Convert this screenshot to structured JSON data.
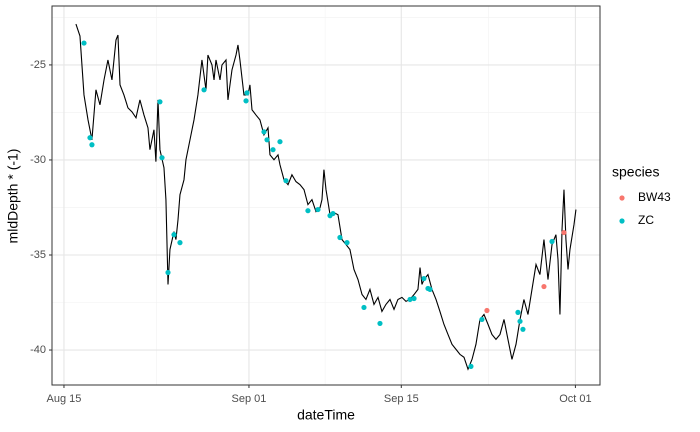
{
  "chart_data": {
    "type": "scatter",
    "x_label": "dateTime",
    "y_label": "mldDepth * (-1)",
    "legend_title": "species",
    "xlim": [
      225.9,
      276.26
    ],
    "ylim": [
      -41.84,
      -21.9
    ],
    "xticks": [
      {
        "value": 227,
        "label": "Aug 15"
      },
      {
        "value": 244,
        "label": "Sep 01"
      },
      {
        "value": 258,
        "label": "Sep 15"
      },
      {
        "value": 274,
        "label": "Oct 01"
      }
    ],
    "yticks": [
      -25,
      -30,
      -35,
      -40
    ],
    "grid": true,
    "legend": "right",
    "line": {
      "color": "#000000",
      "x": [
        228.1,
        228.47,
        228.84,
        229.21,
        229.57,
        229.94,
        230.31,
        230.68,
        231.04,
        231.41,
        231.78,
        231.96,
        232.15,
        232.51,
        232.88,
        233.25,
        233.62,
        233.98,
        234.35,
        234.72,
        234.9,
        235.27,
        235.45,
        235.64,
        235.82,
        236.19,
        236.37,
        236.56,
        236.74,
        237.11,
        237.29,
        237.48,
        237.66,
        238.03,
        238.21,
        238.58,
        238.95,
        239.31,
        239.68,
        240.05,
        240.23,
        240.6,
        240.79,
        240.97,
        241.34,
        241.52,
        241.89,
        242.07,
        242.44,
        242.81,
        242.99,
        243.17,
        243.54,
        243.91,
        244.09,
        244.28,
        244.64,
        245.01,
        245.38,
        245.75,
        245.93,
        246.3,
        246.67,
        246.85,
        247.22,
        247.59,
        247.95,
        248.32,
        248.69,
        249.06,
        249.42,
        249.79,
        250.16,
        250.53,
        250.71,
        250.89,
        251.08,
        251.45,
        251.81,
        252.18,
        252.55,
        252.92,
        253.28,
        253.65,
        254.02,
        254.39,
        254.75,
        255.12,
        255.49,
        255.86,
        256.22,
        256.59,
        256.96,
        257.33,
        257.69,
        258.06,
        258.43,
        258.8,
        259.17,
        259.53,
        259.72,
        259.9,
        260.08,
        260.45,
        260.82,
        261.19,
        261.55,
        261.92,
        262.29,
        262.66,
        263.02,
        263.39,
        263.76,
        264.13,
        264.5,
        264.86,
        265.23,
        265.6,
        265.97,
        266.33,
        266.7,
        267.07,
        267.44,
        267.8,
        268.17,
        268.54,
        268.91,
        269.27,
        269.64,
        270.01,
        270.38,
        270.74,
        271.11,
        271.48,
        271.85,
        272.21,
        272.4,
        272.58,
        272.77,
        272.95,
        273.13,
        273.32,
        273.5,
        273.87,
        274.05
      ],
      "values": [
        -22.85,
        -23.48,
        -26.58,
        -27.89,
        -28.94,
        -26.31,
        -27.1,
        -25.79,
        -24.74,
        -25.79,
        -23.69,
        -23.43,
        -26.05,
        -26.58,
        -27.26,
        -27.47,
        -27.78,
        -26.84,
        -27.63,
        -28.31,
        -29.46,
        -28.41,
        -30.09,
        -26.84,
        -29.46,
        -30.41,
        -32.09,
        -36.55,
        -34.71,
        -33.77,
        -34.19,
        -33.14,
        -31.83,
        -31.04,
        -29.99,
        -28.94,
        -27.89,
        -26.58,
        -24.74,
        -26.31,
        -24.48,
        -25.0,
        -25.79,
        -24.74,
        -25.79,
        -25.0,
        -24.74,
        -26.84,
        -25.26,
        -24.48,
        -23.95,
        -24.74,
        -26.58,
        -26.58,
        -26.05,
        -27.36,
        -27.63,
        -27.89,
        -28.68,
        -28.31,
        -29.73,
        -29.99,
        -29.73,
        -30.25,
        -31.04,
        -31.3,
        -30.78,
        -31.14,
        -31.3,
        -31.56,
        -32.35,
        -32.09,
        -32.72,
        -32.51,
        -32.09,
        -30.51,
        -31.56,
        -32.88,
        -32.77,
        -32.88,
        -34.19,
        -34.45,
        -34.71,
        -35.76,
        -36.29,
        -37.08,
        -37.34,
        -36.81,
        -37.6,
        -37.23,
        -37.97,
        -37.6,
        -37.34,
        -37.86,
        -37.34,
        -37.23,
        -37.44,
        -37.34,
        -37.08,
        -36.81,
        -35.66,
        -36.55,
        -36.29,
        -36.03,
        -36.81,
        -37.34,
        -37.97,
        -38.65,
        -39.18,
        -39.7,
        -39.96,
        -40.23,
        -40.38,
        -41.01,
        -40.49,
        -39.7,
        -38.39,
        -38.13,
        -38.65,
        -39.18,
        -39.44,
        -39.18,
        -38.39,
        -39.44,
        -40.49,
        -39.7,
        -38.39,
        -37.34,
        -38.13,
        -36.81,
        -35.5,
        -36.03,
        -34.19,
        -36.29,
        -34.45,
        -33.93,
        -35.24,
        -38.13,
        -33.66,
        -31.56,
        -34.19,
        -35.76,
        -34.71,
        -33.4,
        -32.61
      ]
    },
    "series": [
      {
        "name": "BW43",
        "color": "#F8766D",
        "x": [
          265.87,
          271.11,
          272.95
        ],
        "values": [
          -37.92,
          -36.66,
          -33.82
        ]
      },
      {
        "name": "ZC",
        "color": "#00BFC4",
        "x": [
          228.84,
          229.39,
          229.57,
          235.82,
          236.01,
          236.56,
          237.11,
          237.66,
          239.87,
          243.73,
          243.82,
          245.38,
          245.66,
          246.21,
          246.85,
          247.4,
          249.42,
          250.34,
          251.45,
          251.72,
          252.36,
          253.01,
          254.57,
          256.04,
          258.8,
          259.17,
          260.08,
          260.45,
          260.64,
          264.4,
          265.41,
          268.72,
          268.91,
          269.18,
          271.85
        ],
        "values": [
          -23.85,
          -28.83,
          -29.2,
          -26.94,
          -29.88,
          -35.92,
          -33.93,
          -34.35,
          -26.31,
          -26.89,
          -26.47,
          -28.52,
          -28.94,
          -29.46,
          -29.04,
          -31.09,
          -32.67,
          -32.61,
          -32.93,
          -32.82,
          -34.08,
          -34.35,
          -37.76,
          -38.6,
          -37.34,
          -37.29,
          -36.24,
          -36.76,
          -36.81,
          -40.86,
          -38.39,
          -38.02,
          -38.49,
          -38.91,
          -34.29
        ]
      }
    ]
  }
}
